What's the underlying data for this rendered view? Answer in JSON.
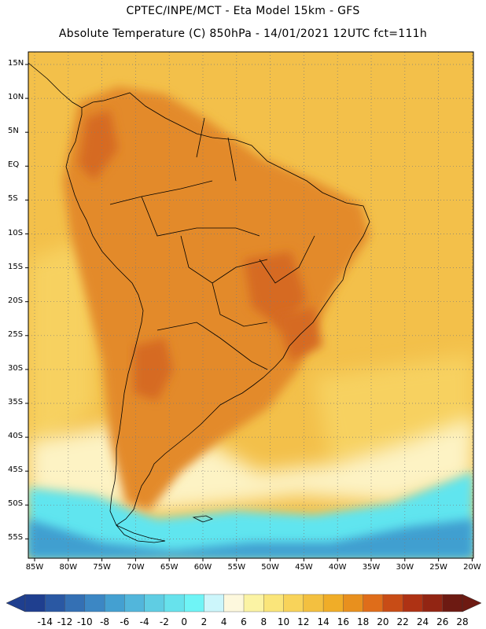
{
  "header": {
    "line1": "CPTEC/INPE/MCT -  Eta Model 15km - GFS",
    "line2": "Absolute Temperature (C) 850hPa - 14/01/2021 12UTC fct=111h"
  },
  "map": {
    "lat_labels": [
      "15N",
      "10N",
      "5N",
      "EQ",
      "5S",
      "10S",
      "15S",
      "20S",
      "25S",
      "30S",
      "35S",
      "40S",
      "45S",
      "50S",
      "55S"
    ],
    "lon_labels": [
      "85W",
      "80W",
      "75W",
      "70W",
      "65W",
      "60W",
      "55W",
      "50W",
      "45W",
      "40W",
      "35W",
      "30W",
      "25W",
      "20W"
    ],
    "colors": {
      "ocean_warm": "#f3c04a",
      "ocean_mid": "#f7d160",
      "land_hot": "#e38a2a",
      "land_hotter": "#d66a23",
      "cool_pale": "#fdf3c4",
      "cold_cyan": "#61e5ef",
      "cold_blue": "#3f9fd0"
    }
  },
  "colorbar": {
    "labels": [
      "-14",
      "-12",
      "-10",
      "-8",
      "-6",
      "-4",
      "-2",
      "0",
      "2",
      "4",
      "6",
      "8",
      "10",
      "12",
      "14",
      "16",
      "18",
      "20",
      "22",
      "24",
      "26",
      "28"
    ],
    "colors": [
      "#1f3f8f",
      "#2a58a3",
      "#3470b4",
      "#3c87c4",
      "#44a0d1",
      "#52b6db",
      "#5fcde3",
      "#67e2ec",
      "#6ff4f6",
      "#ccf6fb",
      "#fdf8dd",
      "#fbf3a4",
      "#fae57a",
      "#f8d35a",
      "#f3c040",
      "#f0ad28",
      "#e8901e",
      "#df6d1a",
      "#c84c16",
      "#ae3214",
      "#922513",
      "#6d1a12"
    ]
  }
}
